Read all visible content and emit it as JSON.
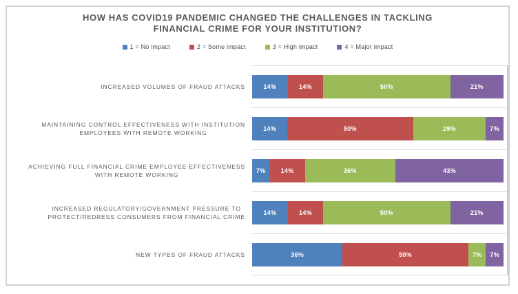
{
  "header": {
    "title_lines": [
      "HOW HAS COVID19 PANDEMIC CHANGED THE CHALLENGES IN TACKLING",
      "FINANCIAL CRIME FOR YOUR INSTITUTION?"
    ]
  },
  "colors": {
    "no_impact": "#4F81BD",
    "some_impact": "#C0504D",
    "high_impact": "#9BBB59",
    "major_impact": "#8064A2",
    "gridline": "#d9d9d9",
    "text_gray": "#595959"
  },
  "chart_data": {
    "type": "bar",
    "subtype": "100%-stacked-horizontal",
    "title": "HOW HAS COVID19 PANDEMIC CHANGED THE CHALLENGES IN TACKLING FINANCIAL CRIME FOR YOUR INSTITUTION?",
    "unit": "%",
    "xlim": [
      0,
      100
    ],
    "legend_position": "top",
    "gridlines": "between-categories",
    "value_labels": "inside-white-percent",
    "categories": [
      "INCREASED VOLUMES OF FRAUD ATTACKS",
      "MAINTAINING CONTROL EFFECTIVENESS WITH INSTITUTION\nEMPLOYEES WITH REMOTE WORKING",
      "ACHIEVING FULL FINANCIAL CRIME EMPLOYEE EFFECTIVENESS\nWITH REMOTE WORKING",
      "INCREASED REGULATORY/GOVERNMENT PRESSURE TO\nPROTECT/REDRESS CONSUMERS FROM FINANCIAL CRIME",
      "NEW TYPES OF FRAUD ATTACKS"
    ],
    "series": [
      {
        "name": "1 = No impact",
        "color": "#4F81BD",
        "values": [
          14,
          14,
          7,
          14,
          36
        ]
      },
      {
        "name": "2 = Some impact",
        "color": "#C0504D",
        "values": [
          14,
          50,
          14,
          14,
          50
        ]
      },
      {
        "name": "3 = High impact",
        "color": "#9BBB59",
        "values": [
          50,
          29,
          36,
          50,
          7
        ]
      },
      {
        "name": "4 = Major impact",
        "color": "#8064A2",
        "values": [
          21,
          7,
          43,
          21,
          7
        ]
      }
    ]
  }
}
